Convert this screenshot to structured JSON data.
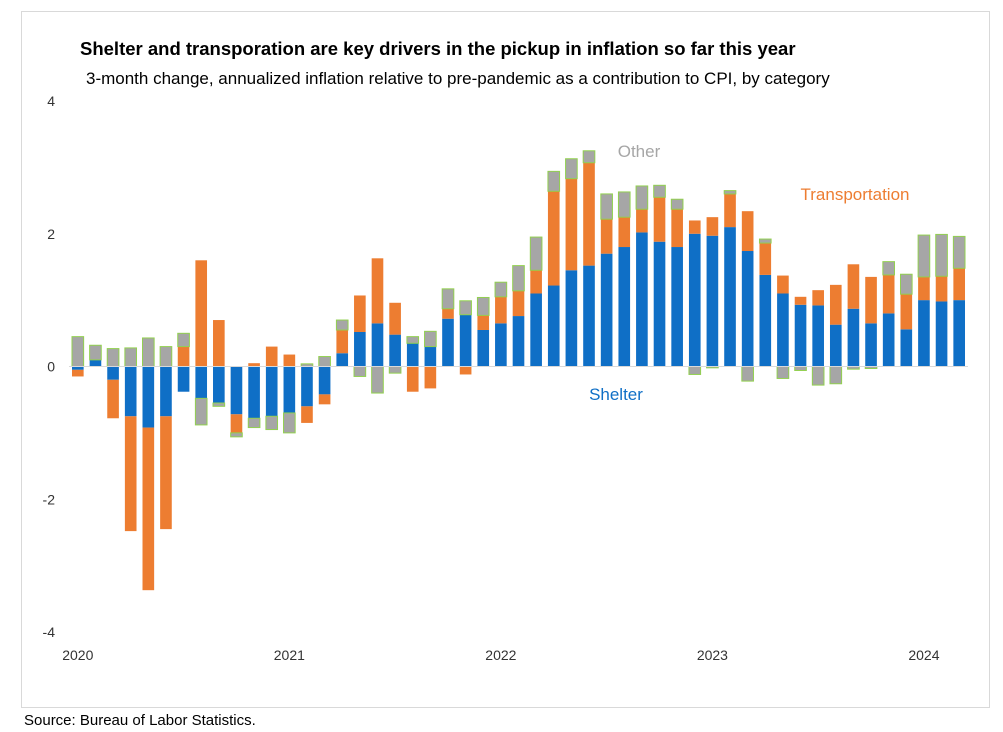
{
  "title": "Shelter and transporation are key drivers in the pickup in inflation so far this year",
  "subtitle": "3-month change, annualized inflation relative to pre-pandemic as a contribution to CPI, by category",
  "source": "Source: Bureau of Labor Statistics.",
  "colors": {
    "shelter": "#0F6FC6",
    "transportation": "#ED7D31",
    "other": "#A6A6A6",
    "other_outline": "#92D050"
  },
  "chart_data": {
    "type": "bar",
    "stacked": true,
    "ylim": [
      -4,
      4
    ],
    "yticks": [
      "4",
      "2",
      "0",
      "-2",
      "-4"
    ],
    "xtick_labels": [
      {
        "label": "2020",
        "index": 0
      },
      {
        "label": "2021",
        "index": 12
      },
      {
        "label": "2022",
        "index": 24
      },
      {
        "label": "2023",
        "index": 36
      },
      {
        "label": "2024",
        "index": 48
      }
    ],
    "categories": [
      "Jan 2020",
      "Feb 2020",
      "Mar 2020",
      "Apr 2020",
      "May 2020",
      "Jun 2020",
      "Jul 2020",
      "Aug 2020",
      "Sep 2020",
      "Oct 2020",
      "Nov 2020",
      "Dec 2020",
      "Jan 2021",
      "Feb 2021",
      "Mar 2021",
      "Apr 2021",
      "May 2021",
      "Jun 2021",
      "Jul 2021",
      "Aug 2021",
      "Sep 2021",
      "Oct 2021",
      "Nov 2021",
      "Dec 2021",
      "Jan 2022",
      "Feb 2022",
      "Mar 2022",
      "Apr 2022",
      "May 2022",
      "Jun 2022",
      "Jul 2022",
      "Aug 2022",
      "Sep 2022",
      "Oct 2022",
      "Nov 2022",
      "Dec 2022",
      "Jan 2023",
      "Feb 2023",
      "Mar 2023",
      "Apr 2023",
      "May 2023",
      "Jun 2023",
      "Jul 2023",
      "Aug 2023",
      "Sep 2023",
      "Oct 2023",
      "Nov 2023",
      "Dec 2023",
      "Jan 2024",
      "Feb 2024",
      "Mar 2024"
    ],
    "series": [
      {
        "name": "Shelter",
        "values": [
          -0.05,
          0.1,
          -0.2,
          -0.75,
          -0.92,
          -0.75,
          -0.38,
          -0.48,
          -0.55,
          -0.72,
          -0.78,
          -0.75,
          -0.7,
          -0.6,
          -0.42,
          0.2,
          0.52,
          0.65,
          0.48,
          0.35,
          0.3,
          0.72,
          0.78,
          0.55,
          0.65,
          0.76,
          1.1,
          1.22,
          1.45,
          1.52,
          1.7,
          1.8,
          2.02,
          1.88,
          1.8,
          2.0,
          1.97,
          2.1,
          1.74,
          1.38,
          1.1,
          0.93,
          0.92,
          0.63,
          0.87,
          0.65,
          0.8,
          0.56,
          1.0,
          0.98,
          1.0
        ]
      },
      {
        "name": "Transportation",
        "values": [
          -0.1,
          0.0,
          -0.58,
          -1.73,
          -2.45,
          -1.7,
          0.3,
          1.6,
          0.7,
          -0.28,
          0.05,
          0.3,
          0.18,
          -0.25,
          -0.15,
          0.35,
          0.55,
          0.98,
          0.48,
          -0.38,
          -0.33,
          0.15,
          -0.12,
          0.22,
          0.4,
          0.38,
          0.35,
          1.42,
          1.38,
          1.55,
          0.52,
          0.45,
          0.35,
          0.67,
          0.57,
          0.2,
          0.28,
          0.5,
          0.6,
          0.48,
          0.27,
          0.12,
          0.23,
          0.6,
          0.67,
          0.7,
          0.58,
          0.53,
          0.35,
          0.38,
          0.48
        ]
      },
      {
        "name": "Other",
        "values": [
          0.45,
          0.22,
          0.27,
          0.28,
          0.43,
          0.3,
          0.2,
          -0.4,
          -0.05,
          -0.06,
          -0.14,
          -0.2,
          -0.3,
          0.04,
          0.15,
          0.15,
          -0.15,
          -0.4,
          -0.1,
          0.1,
          0.23,
          0.3,
          0.21,
          0.27,
          0.22,
          0.38,
          0.5,
          0.3,
          0.3,
          0.18,
          0.38,
          0.38,
          0.35,
          0.18,
          0.15,
          -0.12,
          -0.02,
          0.05,
          -0.22,
          0.06,
          -0.18,
          -0.06,
          -0.28,
          -0.26,
          -0.04,
          -0.03,
          0.2,
          0.3,
          0.63,
          0.63,
          0.48
        ]
      }
    ],
    "annotations": [
      {
        "text": "Other",
        "series": "Other"
      },
      {
        "text": "Transportation",
        "series": "Transportation"
      },
      {
        "text": "Shelter",
        "series": "Shelter"
      }
    ],
    "grid": false,
    "legend": "none"
  }
}
